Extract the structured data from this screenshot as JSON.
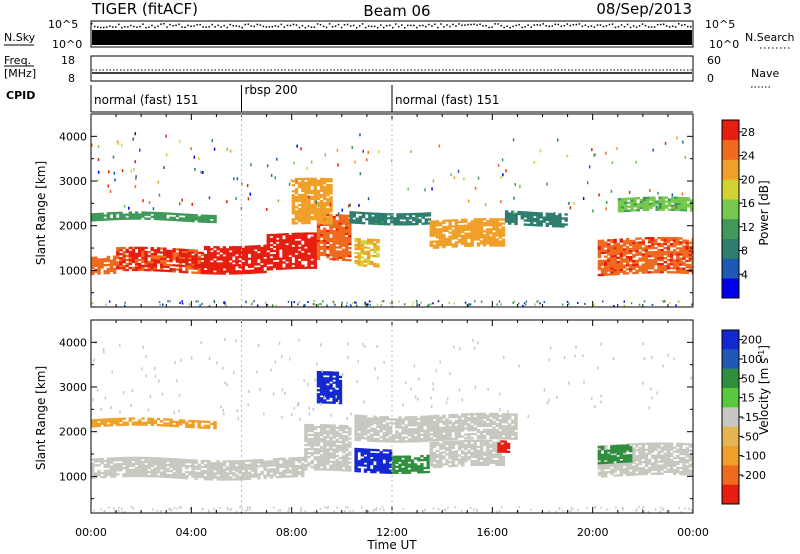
{
  "header": {
    "title": "TIGER (fitACF)",
    "beam": "Beam 06",
    "date": "08/Sep/2013"
  },
  "strips": {
    "nsky_label": "N.Sky",
    "nsky_ticks": [
      "10^5",
      "10^0"
    ],
    "nsearch_label": "N.Search",
    "freq_label": "Freq.",
    "freq_unit": "[MHz]",
    "freq_ticks": [
      "18",
      "8"
    ],
    "nave_label": "Nave",
    "nave_ticks": [
      "60",
      "0"
    ],
    "cpid_label": "CPID"
  },
  "cpid_segments": [
    {
      "label": "normal (fast) 151",
      "start": 0,
      "end": 6
    },
    {
      "label": "rbsp 200",
      "start": 6,
      "end": 12
    },
    {
      "label": "normal (fast) 151",
      "start": 12,
      "end": 24
    }
  ],
  "colors": {
    "power": [
      "#0000e6",
      "#1e5ab4",
      "#2e7d6e",
      "#3f9a5a",
      "#78c850",
      "#d2d232",
      "#f0a028",
      "#f06a1e",
      "#e61e10"
    ],
    "velocity": [
      "#1428d2",
      "#1e5ab4",
      "#2f8f3f",
      "#5ac83c",
      "#c8c8c0",
      "#e6b450",
      "#f0a028",
      "#f06a1e",
      "#e61e10"
    ]
  },
  "chart_data": [
    {
      "type": "heatmap",
      "name": "power",
      "xlabel": "",
      "ylabel": "Slant Range [km]",
      "xlim": [
        0,
        24
      ],
      "ylim": [
        180,
        4500
      ],
      "yticks": [
        1000,
        2000,
        3000,
        4000
      ],
      "colorbar": {
        "label": "Power [dB]",
        "ticks": [
          "4",
          "8",
          "12",
          "16",
          "20",
          "24",
          "28"
        ],
        "range": [
          0,
          30
        ]
      },
      "bands": [
        {
          "t0": 0.0,
          "t1": 1.0,
          "r0": 900,
          "r1": 1300,
          "v": 25
        },
        {
          "t0": 1.0,
          "t1": 4.5,
          "r0": 950,
          "r1": 1450,
          "v": 27
        },
        {
          "t0": 4.5,
          "t1": 7.0,
          "r0": 950,
          "r1": 1550,
          "v": 28
        },
        {
          "t0": 7.0,
          "t1": 9.0,
          "r0": 1000,
          "r1": 1800,
          "v": 29
        },
        {
          "t0": 9.0,
          "t1": 10.3,
          "r0": 1200,
          "r1": 2200,
          "v": 26
        },
        {
          "t0": 8.0,
          "t1": 9.6,
          "r0": 2000,
          "r1": 3000,
          "v": 22
        },
        {
          "t0": 10.5,
          "t1": 11.5,
          "r0": 1100,
          "r1": 1700,
          "v": 20
        },
        {
          "t0": 10.3,
          "t1": 13.5,
          "r0": 2050,
          "r1": 2300,
          "v": 9
        },
        {
          "t0": 13.5,
          "t1": 16.5,
          "r0": 1500,
          "r1": 2100,
          "v": 22
        },
        {
          "t0": 16.5,
          "t1": 19.0,
          "r0": 2000,
          "r1": 2300,
          "v": 8
        },
        {
          "t0": 20.2,
          "t1": 24.0,
          "r0": 900,
          "r1": 1700,
          "v": 26
        },
        {
          "t0": 0.0,
          "t1": 5.0,
          "r0": 2100,
          "r1": 2250,
          "v": 12
        },
        {
          "t0": 21.0,
          "t1": 24.0,
          "r0": 2300,
          "r1": 2600,
          "v": 14
        }
      ]
    },
    {
      "type": "heatmap",
      "name": "velocity",
      "xlabel": "Time UT",
      "ylabel": "Slant Range [km]",
      "xlim": [
        0,
        24
      ],
      "ylim": [
        180,
        4500
      ],
      "xticks": [
        "00:00",
        "04:00",
        "08:00",
        "12:00",
        "16:00",
        "20:00",
        "00:00"
      ],
      "yticks": [
        1000,
        2000,
        3000,
        4000
      ],
      "colorbar": {
        "label": "Velocity [m s^-1]",
        "ticks": [
          "200",
          "100",
          "50",
          "15",
          "-15",
          "-50",
          "-100",
          "-200"
        ]
      },
      "bands": [
        {
          "t0": 0.0,
          "t1": 8.5,
          "r0": 950,
          "r1": 1400,
          "v": 0
        },
        {
          "t0": 8.5,
          "t1": 10.3,
          "r0": 1100,
          "r1": 2100,
          "v": 0
        },
        {
          "t0": 9.0,
          "t1": 10.0,
          "r0": 2600,
          "r1": 3300,
          "v": 210
        },
        {
          "t0": 10.5,
          "t1": 12.0,
          "r0": 1100,
          "r1": 1600,
          "v": 210
        },
        {
          "t0": 12.0,
          "t1": 13.5,
          "r0": 1100,
          "r1": 1500,
          "v": 60
        },
        {
          "t0": 10.5,
          "t1": 17.0,
          "r0": 1800,
          "r1": 2350,
          "v": 0
        },
        {
          "t0": 13.5,
          "t1": 16.5,
          "r0": 1200,
          "r1": 1750,
          "v": 0
        },
        {
          "t0": 16.2,
          "t1": 16.7,
          "r0": 1500,
          "r1": 1750,
          "v": -180
        },
        {
          "t0": 20.2,
          "t1": 24.0,
          "r0": 1000,
          "r1": 1700,
          "v": 0
        },
        {
          "t0": 20.2,
          "t1": 21.5,
          "r0": 1300,
          "r1": 1700,
          "v": 60
        },
        {
          "t0": 0.0,
          "t1": 5.0,
          "r0": 2100,
          "r1": 2250,
          "v": -60
        }
      ]
    }
  ]
}
